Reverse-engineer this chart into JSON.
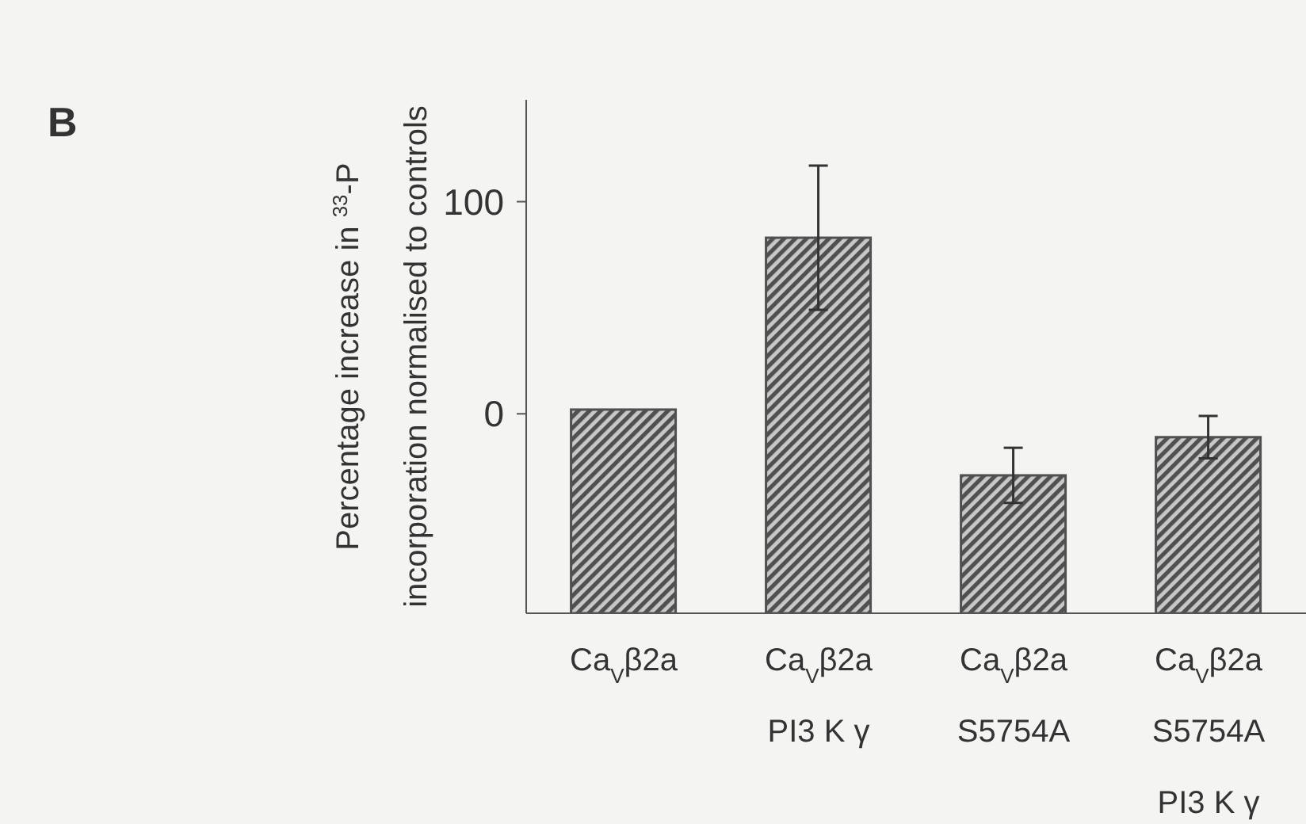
{
  "chart_data": {
    "type": "bar",
    "ylabel": "Percentage increase in $^{33}$-P\nincorporation normalised to controls",
    "categories": [
      "Ca$_{V}$β2a",
      "Ca$_{V}$β2a\nPI3 K γ",
      "Ca$_{V}$β2a\nS5754A",
      "Ca$_{V}$β2a\nS5754A\nPI3 K γ"
    ],
    "base": [
      -94,
      -94,
      -94,
      -94
    ],
    "values": [
      96,
      177,
      65,
      83
    ],
    "errors": [
      null,
      34,
      13,
      10
    ],
    "color": "#505050",
    "ylim": [
      -94,
      148
    ],
    "yticks": [
      0,
      100
    ],
    "annotations": [
      "B"
    ]
  }
}
